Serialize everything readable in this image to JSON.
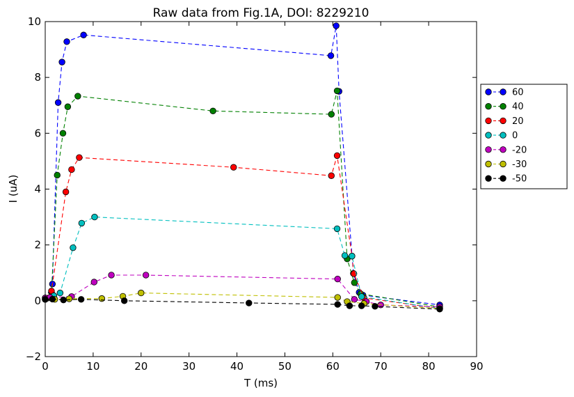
{
  "chart_data": {
    "type": "line",
    "title": "Raw data from Fig.1A, DOI: 8229210",
    "xlabel": "T (ms)",
    "ylabel": "I (uA)",
    "xlim": [
      0,
      90
    ],
    "ylim": [
      -2,
      10
    ],
    "xticks": [
      "0",
      "10",
      "20",
      "30",
      "40",
      "50",
      "60",
      "70",
      "80",
      "90"
    ],
    "yticks": [
      "−2",
      "0",
      "2",
      "4",
      "6",
      "8",
      "10"
    ],
    "legend_position": "right",
    "series": [
      {
        "name": "60",
        "color": "#0000ff",
        "points": [
          [
            0,
            0.05
          ],
          [
            1.5,
            0.6
          ],
          [
            2.7,
            7.1
          ],
          [
            3.5,
            8.55
          ],
          [
            4.5,
            9.28
          ],
          [
            8,
            9.52
          ],
          [
            59.6,
            8.78
          ],
          [
            60.7,
            9.85
          ],
          [
            61.3,
            7.5
          ],
          [
            64.3,
            0.98
          ],
          [
            65.5,
            0.3
          ],
          [
            66.3,
            0.2
          ],
          [
            82.3,
            -0.15
          ]
        ]
      },
      {
        "name": "40",
        "color": "#008000",
        "points": [
          [
            0,
            0.05
          ],
          [
            1.3,
            0.3
          ],
          [
            2.5,
            4.5
          ],
          [
            3.7,
            6.0
          ],
          [
            4.7,
            6.95
          ],
          [
            6.8,
            7.33
          ],
          [
            35,
            6.8
          ],
          [
            59.7,
            6.68
          ],
          [
            60.9,
            7.52
          ],
          [
            63,
            1.5
          ],
          [
            64.5,
            0.65
          ],
          [
            65.8,
            0.25
          ],
          [
            82.3,
            -0.22
          ]
        ]
      },
      {
        "name": "20",
        "color": "#ff0000",
        "points": [
          [
            0,
            0.1
          ],
          [
            1.3,
            0.35
          ],
          [
            4.3,
            3.9
          ],
          [
            5.5,
            4.7
          ],
          [
            7.1,
            5.13
          ],
          [
            39.3,
            4.78
          ],
          [
            59.7,
            4.48
          ],
          [
            60.9,
            5.2
          ],
          [
            64,
            1.6
          ],
          [
            64.4,
            0.97
          ],
          [
            66.5,
            0.1
          ],
          [
            82.3,
            -0.27
          ]
        ]
      },
      {
        "name": "0",
        "color": "#00bfbf",
        "points": [
          [
            0,
            0.1
          ],
          [
            1.8,
            0.18
          ],
          [
            3.1,
            0.28
          ],
          [
            5.8,
            1.9
          ],
          [
            7.6,
            2.78
          ],
          [
            10.3,
            3.0
          ],
          [
            60.9,
            2.58
          ],
          [
            62.5,
            1.62
          ],
          [
            64,
            1.6
          ],
          [
            66,
            0.15
          ],
          [
            82.3,
            -0.28
          ]
        ]
      },
      {
        "name": "-20",
        "color": "#bf00bf",
        "points": [
          [
            0,
            0.1
          ],
          [
            1,
            0.12
          ],
          [
            5.5,
            0.15
          ],
          [
            10.2,
            0.67
          ],
          [
            13.8,
            0.92
          ],
          [
            21,
            0.92
          ],
          [
            61,
            0.78
          ],
          [
            64.5,
            0.05
          ],
          [
            67,
            -0.03
          ],
          [
            70,
            -0.15
          ],
          [
            82.3,
            -0.22
          ]
        ]
      },
      {
        "name": "-30",
        "color": "#bfbf00",
        "points": [
          [
            0,
            0.05
          ],
          [
            2,
            0.05
          ],
          [
            5,
            0.07
          ],
          [
            11.8,
            0.08
          ],
          [
            16.2,
            0.16
          ],
          [
            20,
            0.28
          ],
          [
            61,
            0.12
          ],
          [
            63,
            -0.03
          ],
          [
            66.5,
            -0.1
          ],
          [
            82.3,
            -0.28
          ]
        ]
      },
      {
        "name": "-50",
        "color": "#000000",
        "points": [
          [
            0,
            0.05
          ],
          [
            1.5,
            0.06
          ],
          [
            3.8,
            0.03
          ],
          [
            7.5,
            0.05
          ],
          [
            16.5,
            0.0
          ],
          [
            42.5,
            -0.08
          ],
          [
            61,
            -0.13
          ],
          [
            63.5,
            -0.18
          ],
          [
            66,
            -0.18
          ],
          [
            68.8,
            -0.2
          ],
          [
            82.3,
            -0.3
          ]
        ]
      }
    ]
  }
}
